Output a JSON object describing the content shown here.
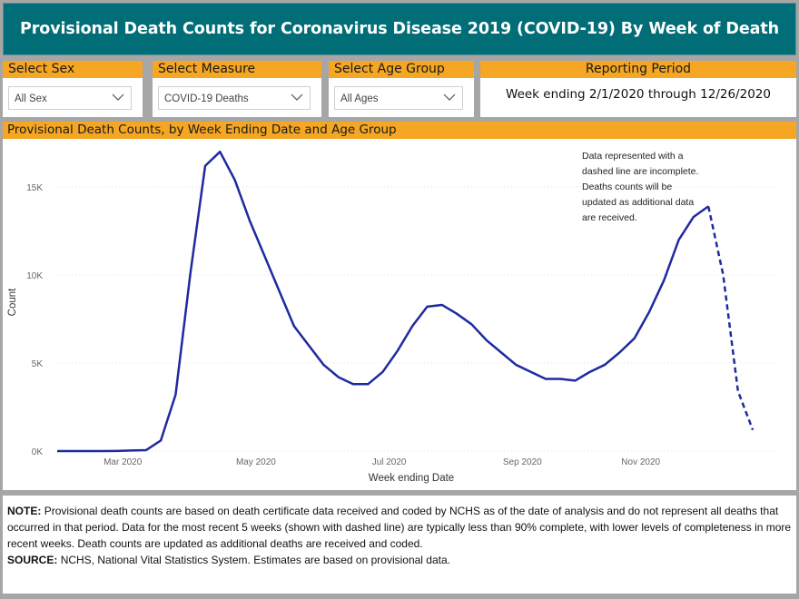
{
  "title": "Provisional Death Counts for Coronavirus Disease 2019 (COVID-19) By Week of Death",
  "filters": {
    "sex": {
      "label": "Select Sex",
      "value": "All Sex"
    },
    "measure": {
      "label": "Select Measure",
      "value": "COVID-19 Deaths"
    },
    "age": {
      "label": "Select Age Group",
      "value": "All Ages"
    },
    "period": {
      "label": "Reporting Period",
      "value": "Week ending 2/1/2020 through 12/26/2020"
    }
  },
  "colors": {
    "accent": "#f5a623",
    "banner": "#006d77",
    "line": "#1f2a9e"
  },
  "chart_data": {
    "type": "line",
    "title": "Provisional Death Counts, by Week Ending Date and Age Group",
    "xlabel": "Week ending Date",
    "ylabel": "Count",
    "x_tick_labels": [
      "Mar 2020",
      "May 2020",
      "Jul 2020",
      "Sep 2020",
      "Nov 2020"
    ],
    "y_tick_labels": [
      "0K",
      "5K",
      "10K",
      "15K"
    ],
    "ylim": [
      0,
      17500
    ],
    "grid": true,
    "annotation": "Data represented with a dashed line are incomplete. Deaths counts will be updated as additional data are received.",
    "x": [
      "2020-02-01",
      "2020-02-08",
      "2020-02-15",
      "2020-02-22",
      "2020-02-29",
      "2020-03-07",
      "2020-03-14",
      "2020-03-21",
      "2020-03-28",
      "2020-04-04",
      "2020-04-11",
      "2020-04-18",
      "2020-04-25",
      "2020-05-02",
      "2020-05-09",
      "2020-05-16",
      "2020-05-23",
      "2020-05-30",
      "2020-06-06",
      "2020-06-13",
      "2020-06-20",
      "2020-06-27",
      "2020-07-04",
      "2020-07-11",
      "2020-07-18",
      "2020-07-25",
      "2020-08-01",
      "2020-08-08",
      "2020-08-15",
      "2020-08-22",
      "2020-08-29",
      "2020-09-05",
      "2020-09-12",
      "2020-09-19",
      "2020-09-26",
      "2020-10-03",
      "2020-10-10",
      "2020-10-17",
      "2020-10-24",
      "2020-10-31",
      "2020-11-07",
      "2020-11-14",
      "2020-11-21",
      "2020-11-28",
      "2020-12-05",
      "2020-12-12",
      "2020-12-19",
      "2020-12-26"
    ],
    "series": [
      {
        "values": [
          0,
          0,
          0,
          0,
          5,
          30,
          50,
          600,
          3200,
          10100,
          16200,
          17000,
          15400,
          13100,
          11100,
          9100,
          7100,
          6000,
          4900,
          4200,
          3800,
          3800,
          4500,
          5700,
          7100,
          8200,
          8300,
          7800,
          7200,
          6300,
          5600,
          4900,
          4500,
          4100,
          4100,
          4000,
          4500,
          4900,
          5600,
          6400,
          7900,
          9700,
          12000,
          13300,
          13900,
          10000,
          3400,
          1200
        ],
        "complete_until_index": 44
      }
    ]
  },
  "notes": {
    "note_label": "NOTE:",
    "note_text": "Provisional death counts are based on death certificate data received and coded by NCHS as of the date of analysis and do not represent all deaths that occurred in that period. Data for the most recent 5 weeks (shown with dashed line) are typically less than 90% complete, with lower levels of completeness in more recent weeks.  Death counts are updated as additional deaths are received and coded.",
    "source_label": "SOURCE:",
    "source_text": "NCHS, National Vital Statistics System. Estimates are based on provisional data."
  }
}
